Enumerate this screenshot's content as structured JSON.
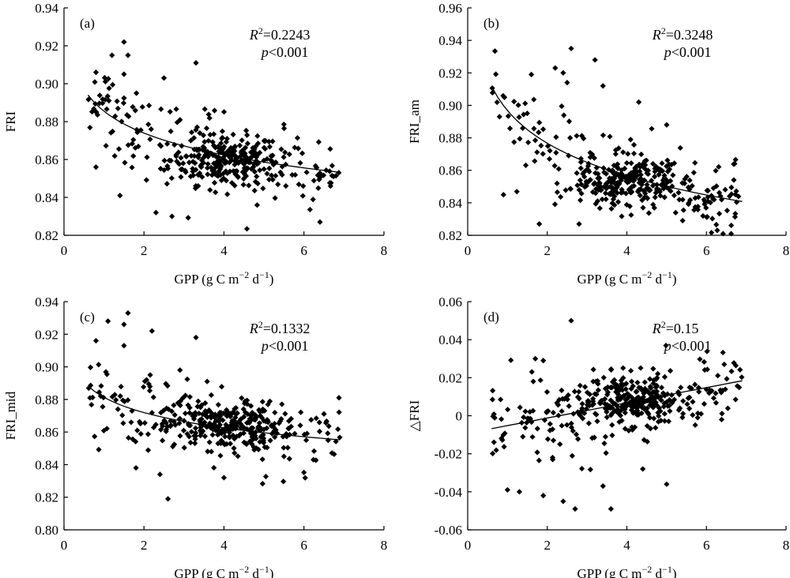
{
  "chart_data": [
    {
      "type": "scatter",
      "panel": "(a)",
      "xlabel": "GPP (g C m",
      "xlabel_sup1": "−2",
      "xlabel_mid": " d",
      "xlabel_sup2": "−1",
      "xlabel_end": ")",
      "ylabel": "FRI",
      "xlim": [
        0,
        8
      ],
      "ylim": [
        0.82,
        0.94
      ],
      "xticks": [
        0,
        2,
        4,
        6,
        8
      ],
      "yticks": [
        0.82,
        0.84,
        0.86,
        0.88,
        0.9,
        0.92,
        0.94
      ],
      "xtick_labels": [
        "0",
        "2",
        "4",
        "6",
        "8"
      ],
      "ytick_labels": [
        "0.82",
        "0.84",
        "0.86",
        "0.88",
        "0.90",
        "0.92",
        "0.94"
      ],
      "r2_prefix": "R",
      "r2_sup": "2",
      "r2_value": "=0.2243",
      "p_prefix": "p",
      "p_value": "<0.001",
      "trend": {
        "type": "log",
        "a": 0.8855,
        "b": -0.0167
      },
      "center": {
        "x": 4.0,
        "y": 0.86
      },
      "spread": {
        "x": 1.25,
        "y": 0.011
      },
      "x_range": [
        0.6,
        6.9
      ],
      "outliers": [
        [
          0.8,
          0.906
        ],
        [
          1.5,
          0.922
        ],
        [
          1.6,
          0.915
        ],
        [
          1.2,
          0.915
        ],
        [
          3.3,
          0.911
        ],
        [
          2.5,
          0.903
        ],
        [
          1.5,
          0.905
        ],
        [
          6.4,
          0.827
        ],
        [
          2.7,
          0.83
        ],
        [
          0.8,
          0.856
        ],
        [
          1.4,
          0.841
        ],
        [
          2.3,
          0.832
        ]
      ]
    },
    {
      "type": "scatter",
      "panel": "(b)",
      "xlabel": "GPP (g C m",
      "xlabel_sup1": "−2",
      "xlabel_mid": " d",
      "xlabel_sup2": "−1",
      "xlabel_end": ")",
      "ylabel": "FRI_am",
      "xlim": [
        0,
        8
      ],
      "ylim": [
        0.82,
        0.96
      ],
      "xticks": [
        0,
        2,
        4,
        6,
        8
      ],
      "yticks": [
        0.82,
        0.84,
        0.86,
        0.88,
        0.9,
        0.92,
        0.94,
        0.96
      ],
      "xtick_labels": [
        "0",
        "2",
        "4",
        "6",
        "8"
      ],
      "ytick_labels": [
        "0.82",
        "0.84",
        "0.86",
        "0.88",
        "0.90",
        "0.92",
        "0.94",
        "0.96"
      ],
      "r2_prefix": "R",
      "r2_sup": "2",
      "r2_value": "=0.3248",
      "p_prefix": "p",
      "p_value": "<0.001",
      "trend": {
        "type": "log",
        "a": 0.8968,
        "b": -0.029
      },
      "center": {
        "x": 4.0,
        "y": 0.853
      },
      "spread": {
        "x": 1.25,
        "y": 0.012
      },
      "x_range": [
        0.6,
        6.9
      ],
      "outliers": [
        [
          2.6,
          0.935
        ],
        [
          3.2,
          0.928
        ],
        [
          2.2,
          0.923
        ],
        [
          2.4,
          0.92
        ],
        [
          1.6,
          0.919
        ],
        [
          2.5,
          0.914
        ],
        [
          3.4,
          0.912
        ],
        [
          4.3,
          0.902
        ],
        [
          0.8,
          0.893
        ],
        [
          0.9,
          0.845
        ],
        [
          1.8,
          0.827
        ],
        [
          2.8,
          0.827
        ],
        [
          5.0,
          0.888
        ]
      ]
    },
    {
      "type": "scatter",
      "panel": "(c)",
      "xlabel": "GPP (g C m",
      "xlabel_sup1": "−2",
      "xlabel_mid": " d",
      "xlabel_sup2": "−1",
      "xlabel_end": ")",
      "ylabel": "FRI_mid",
      "xlim": [
        0,
        8
      ],
      "ylim": [
        0.8,
        0.94
      ],
      "xticks": [
        0,
        2,
        4,
        6,
        8
      ],
      "yticks": [
        0.8,
        0.82,
        0.84,
        0.86,
        0.88,
        0.9,
        0.92,
        0.94
      ],
      "xtick_labels": [
        "0",
        "2",
        "4",
        "6",
        "8"
      ],
      "ytick_labels": [
        "0.80",
        "0.82",
        "0.84",
        "0.86",
        "0.88",
        "0.90",
        "0.92",
        "0.94"
      ],
      "r2_prefix": "R",
      "r2_sup": "2",
      "r2_value": "=0.1332",
      "p_prefix": "p",
      "p_value": "<0.001",
      "trend": {
        "type": "log",
        "a": 0.8813,
        "b": -0.0135
      },
      "center": {
        "x": 4.0,
        "y": 0.864
      },
      "spread": {
        "x": 1.25,
        "y": 0.012
      },
      "x_range": [
        0.6,
        6.9
      ],
      "outliers": [
        [
          1.6,
          0.933
        ],
        [
          1.1,
          0.928
        ],
        [
          1.5,
          0.926
        ],
        [
          2.2,
          0.922
        ],
        [
          3.3,
          0.918
        ],
        [
          0.8,
          0.916
        ],
        [
          1.5,
          0.913
        ],
        [
          2.6,
          0.819
        ],
        [
          1.8,
          0.838
        ],
        [
          2.4,
          0.834
        ],
        [
          2.9,
          0.898
        ],
        [
          4.0,
          0.832
        ]
      ]
    },
    {
      "type": "scatter",
      "panel": "(d)",
      "xlabel": "GPP (g C m",
      "xlabel_sup1": "−2",
      "xlabel_mid": " d",
      "xlabel_sup2": "−1",
      "xlabel_end": ")",
      "ylabel": "△FRI",
      "xlim": [
        0,
        8
      ],
      "ylim": [
        -0.06,
        0.06
      ],
      "xticks": [
        0,
        2,
        4,
        6,
        8
      ],
      "yticks": [
        -0.06,
        -0.04,
        -0.02,
        0,
        0.02,
        0.04,
        0.06
      ],
      "xtick_labels": [
        "0",
        "2",
        "4",
        "6",
        "8"
      ],
      "ytick_labels": [
        "-0.06",
        "-0.04",
        "-0.02",
        "0",
        "0.02",
        "0.04",
        "0.06"
      ],
      "r2_prefix": "R",
      "r2_sup": "2",
      "r2_value": "=0.15",
      "p_prefix": "p",
      "p_value": "<0.001",
      "trend": {
        "type": "linear",
        "a": -0.0092,
        "b": 0.004
      },
      "center": {
        "x": 4.0,
        "y": 0.008
      },
      "spread": {
        "x": 1.25,
        "y": 0.01
      },
      "x_range": [
        0.6,
        6.9
      ],
      "outliers": [
        [
          2.6,
          0.05
        ],
        [
          1.7,
          0.03
        ],
        [
          1.9,
          0.029
        ],
        [
          1.0,
          -0.039
        ],
        [
          1.3,
          -0.04
        ],
        [
          2.4,
          -0.045
        ],
        [
          2.7,
          -0.049
        ],
        [
          3.6,
          -0.049
        ],
        [
          5.0,
          -0.036
        ],
        [
          3.4,
          -0.037
        ],
        [
          1.9,
          -0.042
        ],
        [
          4.4,
          -0.028
        ]
      ]
    }
  ]
}
